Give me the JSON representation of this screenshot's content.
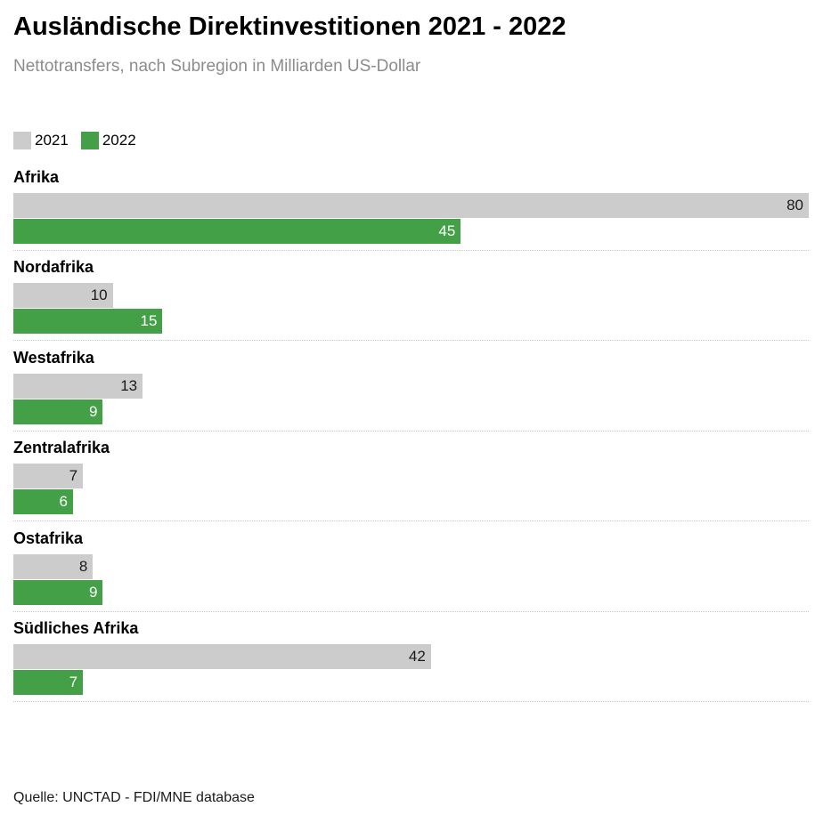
{
  "chart_data": {
    "type": "bar",
    "orientation": "horizontal",
    "title": "Ausländische Direktinvestitionen 2021 - 2022",
    "subtitle": "Nettotransfers, nach Subregion in Milliarden US-Dollar",
    "categories": [
      "Afrika",
      "Nordafrika",
      "Westafrika",
      "Zentralafrika",
      "Ostafrika",
      "Südliches Afrika"
    ],
    "series": [
      {
        "name": "2021",
        "color": "#cccccc",
        "values": [
          80,
          10,
          13,
          7,
          8,
          42
        ]
      },
      {
        "name": "2022",
        "color": "#43a047",
        "values": [
          45,
          15,
          9,
          6,
          9,
          7
        ]
      }
    ],
    "xlim": [
      0,
      80
    ],
    "grid": false,
    "legend_position": "top-left",
    "source": "Quelle: UNCTAD - FDI/MNE database"
  }
}
